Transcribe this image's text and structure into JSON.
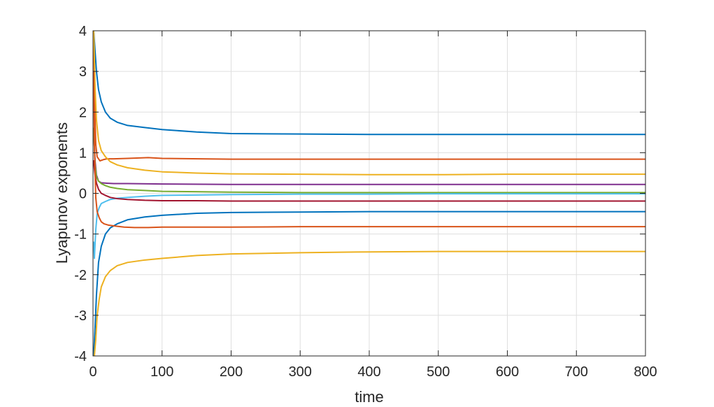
{
  "chart_data": {
    "type": "line",
    "title": "",
    "xlabel": "time",
    "ylabel": "Lyapunov exponents",
    "xlim": [
      0,
      800
    ],
    "ylim": [
      -4,
      4
    ],
    "xticks": [
      0,
      100,
      200,
      300,
      400,
      500,
      600,
      700,
      800
    ],
    "yticks": [
      -4,
      -3,
      -2,
      -1,
      0,
      1,
      2,
      3,
      4
    ],
    "xtick_labels": [
      "0",
      "100",
      "200",
      "300",
      "400",
      "500",
      "600",
      "700",
      "800"
    ],
    "ytick_labels": [
      "-4",
      "-3",
      "-2",
      "-1",
      "0",
      "1",
      "2",
      "3",
      "4"
    ],
    "grid": true,
    "legend": "none",
    "series": [
      {
        "color": "#0072BD",
        "x": [
          1,
          3,
          5,
          8,
          12,
          18,
          25,
          35,
          50,
          75,
          100,
          150,
          200,
          300,
          400,
          500,
          600,
          700,
          800
        ],
        "y": [
          4.0,
          3.5,
          3.0,
          2.55,
          2.25,
          2.0,
          1.85,
          1.75,
          1.67,
          1.62,
          1.57,
          1.51,
          1.47,
          1.46,
          1.45,
          1.45,
          1.45,
          1.45,
          1.45
        ]
      },
      {
        "color": "#D95319",
        "x": [
          1,
          2,
          4,
          6,
          10,
          15,
          20,
          30,
          50,
          80,
          100,
          200,
          300,
          400,
          500,
          600,
          700,
          800
        ],
        "y": [
          4.0,
          2.5,
          1.2,
          0.9,
          0.8,
          0.83,
          0.85,
          0.85,
          0.86,
          0.88,
          0.86,
          0.84,
          0.84,
          0.84,
          0.84,
          0.84,
          0.84,
          0.84
        ]
      },
      {
        "color": "#EDB120",
        "x": [
          1,
          3,
          5,
          8,
          12,
          18,
          25,
          35,
          50,
          75,
          100,
          150,
          200,
          300,
          400,
          500,
          600,
          700,
          800
        ],
        "y": [
          4.0,
          2.6,
          1.8,
          1.3,
          1.05,
          0.9,
          0.78,
          0.7,
          0.63,
          0.57,
          0.53,
          0.5,
          0.48,
          0.47,
          0.46,
          0.46,
          0.47,
          0.47,
          0.47
        ]
      },
      {
        "color": "#7E2F8E",
        "x": [
          1,
          3,
          5,
          8,
          12,
          20,
          30,
          50,
          100,
          200,
          300,
          400,
          500,
          600,
          700,
          800
        ],
        "y": [
          1.5,
          0.8,
          0.45,
          0.3,
          0.26,
          0.25,
          0.24,
          0.24,
          0.23,
          0.22,
          0.22,
          0.22,
          0.22,
          0.22,
          0.22,
          0.22
        ]
      },
      {
        "color": "#77AC30",
        "x": [
          1,
          3,
          5,
          8,
          12,
          18,
          25,
          35,
          50,
          75,
          100,
          150,
          200,
          300,
          400,
          500,
          600,
          700,
          800
        ],
        "y": [
          1.6,
          0.7,
          0.4,
          0.3,
          0.24,
          0.19,
          0.15,
          0.12,
          0.09,
          0.07,
          0.05,
          0.04,
          0.03,
          0.02,
          0.02,
          0.02,
          0.02,
          0.02,
          0.02
        ]
      },
      {
        "color": "#4DBEEE",
        "x": [
          1,
          2,
          4,
          6,
          9,
          12,
          18,
          25,
          35,
          50,
          75,
          100,
          150,
          200,
          300,
          400,
          500,
          600,
          700,
          800
        ],
        "y": [
          -1.2,
          -1.6,
          -0.9,
          -0.5,
          -0.35,
          -0.25,
          -0.2,
          -0.15,
          -0.12,
          -0.1,
          -0.07,
          -0.05,
          -0.04,
          -0.03,
          -0.02,
          -0.02,
          -0.01,
          -0.01,
          -0.01,
          -0.01
        ]
      },
      {
        "color": "#A2142F",
        "x": [
          1,
          2,
          3,
          5,
          8,
          12,
          18,
          25,
          35,
          50,
          75,
          100,
          150,
          200,
          300,
          400,
          500,
          600,
          700,
          800
        ],
        "y": [
          0.8,
          0.6,
          0.45,
          0.25,
          0.1,
          0.0,
          -0.05,
          -0.1,
          -0.13,
          -0.15,
          -0.17,
          -0.18,
          -0.18,
          -0.19,
          -0.19,
          -0.19,
          -0.19,
          -0.19,
          -0.19,
          -0.19
        ]
      },
      {
        "color": "#0072BD",
        "x": [
          1,
          3,
          5,
          8,
          12,
          18,
          25,
          35,
          50,
          75,
          100,
          150,
          200,
          300,
          400,
          500,
          600,
          700,
          800
        ],
        "y": [
          -4.0,
          -3.3,
          -2.5,
          -1.7,
          -1.3,
          -1.0,
          -0.85,
          -0.75,
          -0.65,
          -0.58,
          -0.54,
          -0.49,
          -0.47,
          -0.46,
          -0.45,
          -0.45,
          -0.45,
          -0.45,
          -0.45
        ]
      },
      {
        "color": "#D95319",
        "x": [
          1,
          2,
          4,
          6,
          9,
          12,
          16,
          22,
          30,
          45,
          60,
          80,
          100,
          200,
          300,
          400,
          500,
          600,
          700,
          800
        ],
        "y": [
          3.0,
          1.2,
          -0.1,
          -0.45,
          -0.6,
          -0.7,
          -0.75,
          -0.78,
          -0.8,
          -0.83,
          -0.84,
          -0.84,
          -0.83,
          -0.83,
          -0.82,
          -0.82,
          -0.82,
          -0.82,
          -0.82,
          -0.82
        ]
      },
      {
        "color": "#EDB120",
        "x": [
          2,
          4,
          6,
          9,
          12,
          18,
          25,
          35,
          50,
          75,
          100,
          150,
          200,
          300,
          400,
          500,
          600,
          700,
          800
        ],
        "y": [
          -4.0,
          -3.6,
          -3.0,
          -2.6,
          -2.3,
          -2.05,
          -1.9,
          -1.78,
          -1.7,
          -1.64,
          -1.6,
          -1.53,
          -1.49,
          -1.46,
          -1.44,
          -1.43,
          -1.43,
          -1.43,
          -1.43
        ]
      }
    ]
  }
}
